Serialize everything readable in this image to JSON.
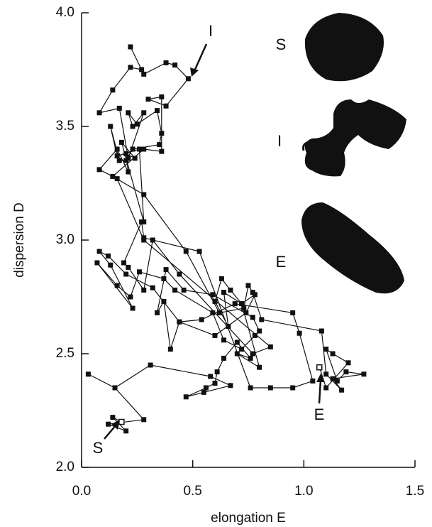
{
  "chart_data": {
    "type": "line",
    "xlabel": "elongation E",
    "ylabel": "dispersion D",
    "color": "#111111",
    "xlim": [
      0,
      1.5
    ],
    "ylim": [
      2.0,
      4.0
    ],
    "xticks": [
      {
        "value": 0,
        "label": "0.0"
      },
      0.5,
      {
        "value": 1,
        "label": "1.0"
      },
      1.5
    ],
    "yticks": [
      {
        "value": 2,
        "label": "2.0"
      },
      2.5,
      {
        "value": 3,
        "label": "3.0"
      },
      3.5,
      {
        "value": 4,
        "label": "4.0"
      }
    ],
    "x": [
      0.18,
      0.14,
      0.2,
      0.12,
      0.28,
      0.15,
      0.03,
      0.15,
      0.31,
      0.58,
      0.67,
      0.55,
      0.47,
      0.56,
      0.6,
      0.61,
      0.64,
      0.7,
      0.76,
      0.7,
      0.8,
      0.72,
      0.64,
      0.66,
      0.6,
      0.63,
      0.67,
      0.72,
      0.78,
      0.74,
      0.6,
      0.44,
      0.4,
      0.37,
      0.34,
      0.38,
      0.46,
      0.59,
      0.77,
      0.8,
      0.78,
      0.72,
      0.64,
      0.59,
      0.42,
      0.37,
      0.26,
      0.22,
      0.16,
      0.07,
      0.23,
      0.13,
      0.08,
      0.12,
      0.2,
      0.32,
      0.44,
      0.54,
      0.69,
      0.95,
      0.98,
      1.04,
      0.95,
      0.85,
      0.76,
      0.53,
      0.28,
      0.27,
      0.19,
      0.21,
      0.28,
      0.32,
      0.44,
      0.77,
      0.85,
      0.28,
      0.16,
      0.08,
      0.16,
      0.21,
      0.2,
      0.24,
      0.18,
      0.28,
      0.26,
      0.16,
      0.13,
      0.17,
      0.2,
      0.23,
      0.35,
      0.36,
      0.34,
      0.25,
      0.21,
      0.23,
      0.28,
      0.21,
      0.17,
      0.08,
      0.14,
      0.22,
      0.27,
      0.22,
      0.28,
      0.38,
      0.42,
      0.48,
      0.38,
      0.3,
      0.36,
      0.36,
      0.28,
      0.14,
      0.28,
      0.47,
      0.62,
      0.73,
      0.75,
      0.77,
      0.81,
      1.08,
      1.1,
      1.17,
      1.13,
      1.27,
      1.19,
      1.15,
      1.1,
      1.13,
      1.2,
      1.1,
      1.07
    ],
    "values": [
      2.2,
      2.22,
      2.16,
      2.19,
      2.21,
      2.35,
      2.41,
      2.35,
      2.45,
      2.4,
      2.36,
      2.33,
      2.31,
      2.35,
      2.37,
      2.42,
      2.48,
      2.55,
      2.48,
      2.5,
      2.44,
      2.72,
      2.77,
      2.62,
      2.73,
      2.83,
      2.78,
      2.72,
      2.76,
      2.68,
      2.58,
      2.64,
      2.52,
      2.73,
      2.68,
      2.87,
      2.78,
      2.76,
      2.66,
      2.6,
      2.58,
      2.52,
      2.56,
      2.68,
      2.78,
      2.83,
      2.86,
      2.75,
      2.8,
      2.9,
      2.7,
      2.89,
      2.95,
      2.93,
      2.85,
      2.79,
      2.64,
      2.65,
      2.72,
      2.68,
      2.59,
      2.38,
      2.35,
      2.35,
      2.35,
      2.95,
      3.01,
      3.08,
      2.9,
      2.88,
      2.78,
      3.0,
      2.85,
      2.5,
      2.53,
      3.0,
      3.27,
      3.31,
      3.4,
      3.3,
      3.38,
      3.36,
      3.43,
      3.08,
      3.4,
      3.37,
      3.5,
      3.35,
      3.35,
      3.4,
      3.42,
      3.47,
      3.57,
      3.51,
      3.56,
      3.5,
      3.56,
      3.36,
      3.58,
      3.56,
      3.66,
      3.76,
      3.75,
      3.85,
      3.73,
      3.78,
      3.77,
      3.71,
      3.59,
      3.62,
      3.63,
      3.39,
      3.4,
      3.28,
      3.2,
      2.95,
      2.68,
      2.7,
      2.8,
      2.77,
      2.65,
      2.6,
      2.41,
      2.34,
      2.39,
      2.41,
      2.42,
      2.38,
      2.52,
      2.5,
      2.46,
      2.35,
      2.44
    ],
    "annotations": [
      "I",
      "E",
      "S"
    ],
    "inset_labels": [
      "S",
      "I",
      "E"
    ]
  }
}
